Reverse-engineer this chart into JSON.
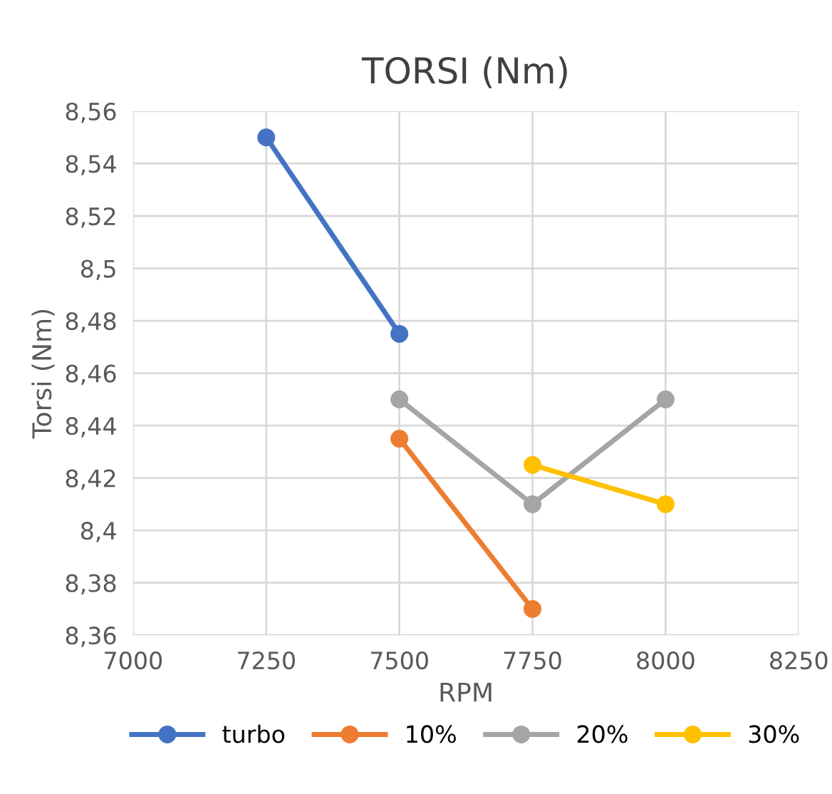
{
  "chart_data": {
    "type": "line",
    "title": "TORSI (Nm)",
    "xlabel": "RPM",
    "ylabel": "Torsi (Nm)",
    "xlim": [
      7000,
      8250
    ],
    "xticks": [
      7000,
      7250,
      7500,
      7750,
      8000,
      8250
    ],
    "ylim": [
      8.36,
      8.56
    ],
    "yticks": [
      {
        "value": 8.36,
        "label": "8,36"
      },
      {
        "value": 8.38,
        "label": "8,38"
      },
      {
        "value": 8.4,
        "label": "8,4"
      },
      {
        "value": 8.42,
        "label": "8,42"
      },
      {
        "value": 8.44,
        "label": "8,44"
      },
      {
        "value": 8.46,
        "label": "8,46"
      },
      {
        "value": 8.48,
        "label": "8,48"
      },
      {
        "value": 8.5,
        "label": "8,5"
      },
      {
        "value": 8.52,
        "label": "8,52"
      },
      {
        "value": 8.54,
        "label": "8,54"
      },
      {
        "value": 8.56,
        "label": "8,56"
      }
    ],
    "grid": true,
    "legend": "bottom",
    "marker": "circle",
    "line_style": "solid",
    "series": [
      {
        "name": "turbo",
        "color": "#4472c4",
        "x": [
          7250,
          7500
        ],
        "values": [
          8.55,
          8.475
        ]
      },
      {
        "name": "10%",
        "color": "#ed7d31",
        "x": [
          7500,
          7750
        ],
        "values": [
          8.435,
          8.37
        ]
      },
      {
        "name": "20%",
        "color": "#a5a5a5",
        "x": [
          7500,
          7750,
          8000
        ],
        "values": [
          8.45,
          8.41,
          8.45
        ]
      },
      {
        "name": "30%",
        "color": "#ffc000",
        "x": [
          7750,
          8000
        ],
        "values": [
          8.425,
          8.41
        ]
      }
    ]
  }
}
